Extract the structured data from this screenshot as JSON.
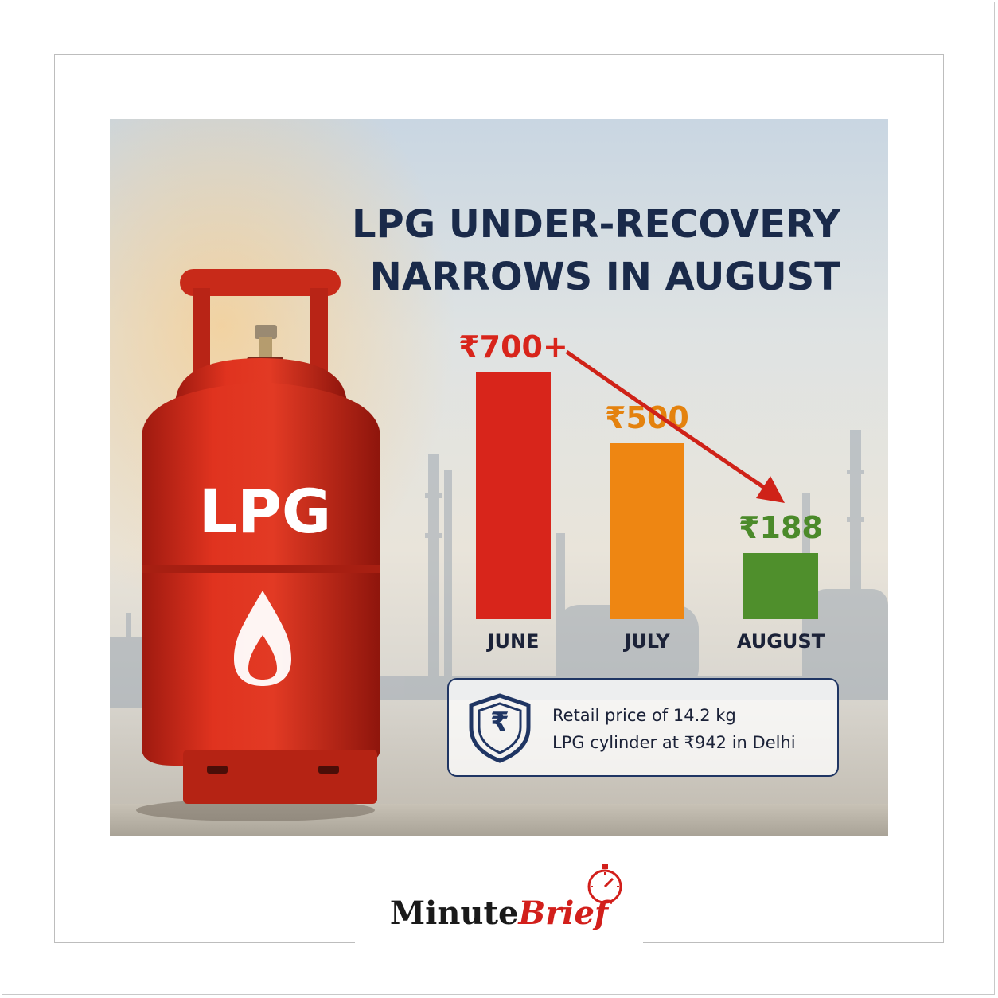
{
  "title_line1": "LPG UNDER-RECOVERY",
  "title_line2": "NARROWS IN AUGUST",
  "cylinder_label": "LPG",
  "chart_data": {
    "type": "bar",
    "title": "LPG UNDER-RECOVERY NARROWS IN AUGUST",
    "categories": [
      "JUNE",
      "JULY",
      "AUGUST"
    ],
    "values": [
      700,
      500,
      188
    ],
    "value_labels": [
      "₹700+",
      "₹500",
      "₹188"
    ],
    "colors": [
      "#d8251b",
      "#ee8612",
      "#4f8f2c"
    ],
    "label_colors": [
      "#d8251b",
      "#e4820e",
      "#4b8a2a"
    ],
    "ylim": [
      0,
      700
    ],
    "grid": false,
    "xlabel": "",
    "ylabel": ""
  },
  "info": {
    "line1": "Retail price of 14.2 kg",
    "line2": "LPG cylinder at ₹942 in Delhi",
    "icon": "rupee-shield-icon",
    "icon_glyph": "₹"
  },
  "brand": {
    "part1": "Minute",
    "part2": "Brief",
    "icon": "stopwatch-icon"
  }
}
